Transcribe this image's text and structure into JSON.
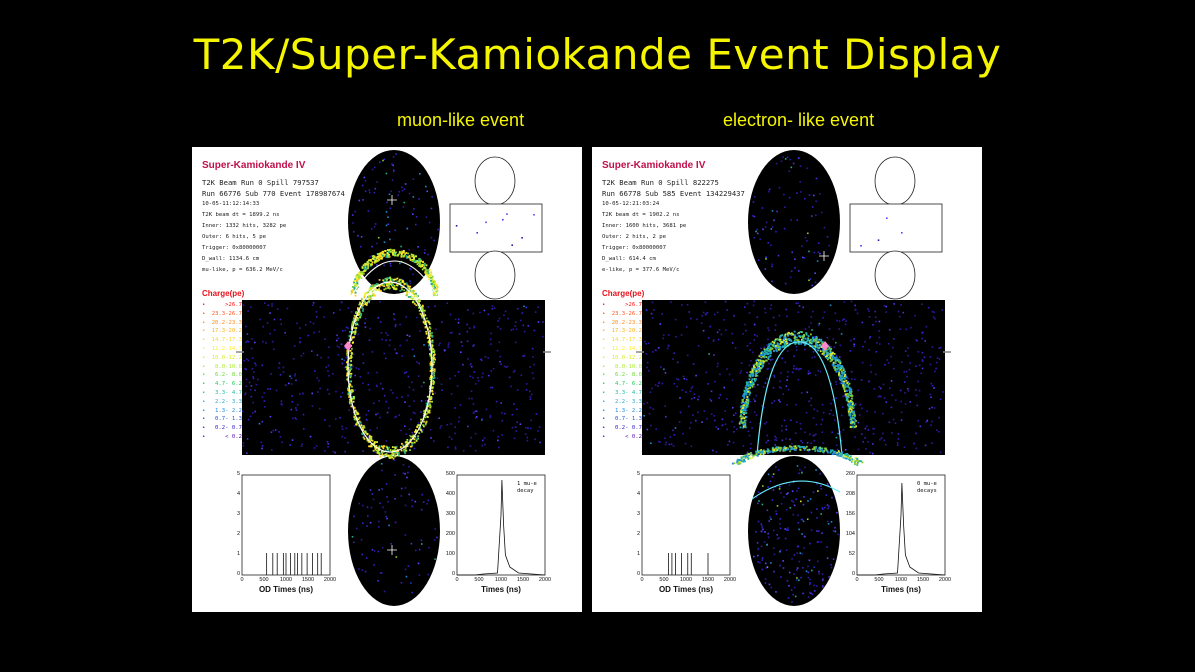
{
  "slide": {
    "title": "T2K/Super-Kamiokande Event Display",
    "left_label": "muon-like  event",
    "right_label": "electron- like event"
  },
  "legend": {
    "title": "Charge(pe)",
    "ranges": [
      ">26.7",
      "23.3-26.7",
      "20.2-23.3",
      "17.3-20.2",
      "14.7-17.3",
      "12.2-14.7",
      "10.0-12.2",
      "8.0-10.0",
      "6.2- 8.0",
      "4.7- 6.2",
      "3.3- 4.7",
      "2.2- 3.3",
      "1.3- 2.2",
      "0.7- 1.3",
      "0.2- 0.7",
      "< 0.2"
    ],
    "colors": [
      "#ff1010",
      "#ff5522",
      "#ff8a20",
      "#ffb020",
      "#ffd020",
      "#ffee30",
      "#ddee30",
      "#aaee30",
      "#66dd30",
      "#22cc55",
      "#22bb99",
      "#22aacc",
      "#2288dd",
      "#2255dd",
      "#3322cc",
      "#5511aa"
    ]
  },
  "panels": [
    {
      "id": "muon",
      "title": "Super-Kamiokande IV",
      "info_big": [
        "T2K Beam Run 0 Spill 797537",
        "Run 66776 Sub 770 Event 178987674"
      ],
      "info_small": [
        "10-05-11:12:14:33",
        "T2K beam dt =  1899.2 ns",
        "Inner: 1332 hits, 3282 pe",
        "Outer: 6 hits, 5 pe",
        "Trigger: 0x80000007",
        "D_wall: 1134.6 cm",
        "mu-like, p = 636.2 MeV/c"
      ],
      "hist_left": {
        "xlabel": "OD Times (ns)",
        "yticks": [
          "0",
          "1",
          "2",
          "3",
          "4",
          "5"
        ],
        "xticks": [
          "0",
          "500",
          "1000",
          "1500",
          "2000"
        ]
      },
      "hist_right": {
        "xlabel": "Times (ns)",
        "yticks": [
          "0",
          "100",
          "200",
          "300",
          "400",
          "500"
        ],
        "xticks": [
          "0",
          "500",
          "1000",
          "1500",
          "2000"
        ],
        "note": [
          "1 mu-e",
          "decay"
        ]
      }
    },
    {
      "id": "electron",
      "title": "Super-Kamiokande IV",
      "info_big": [
        "T2K Beam Run 0 Spill 822275",
        "Run 66778 Sub 585 Event 134229437"
      ],
      "info_small": [
        "10-05-12:21:03:24",
        "T2K beam dt =  1902.2 ns",
        "Inner: 1600 hits, 3681 pe",
        "Outer: 2 hits, 2 pe",
        "Trigger: 0x80000007",
        "D_wall: 614.4 cm",
        "e-like, p = 377.6 MeV/c"
      ],
      "hist_left": {
        "xlabel": "OD Times (ns)",
        "yticks": [
          "0",
          "1",
          "2",
          "3",
          "4",
          "5"
        ],
        "xticks": [
          "0",
          "500",
          "1000",
          "1500",
          "2000"
        ]
      },
      "hist_right": {
        "xlabel": "Times (ns)",
        "yticks": [
          "0",
          "52",
          "104",
          "156",
          "208",
          "260"
        ],
        "xticks": [
          "0",
          "500",
          "1000",
          "1500",
          "2000"
        ],
        "note": [
          "0 mu-e",
          "decays"
        ]
      }
    }
  ]
}
